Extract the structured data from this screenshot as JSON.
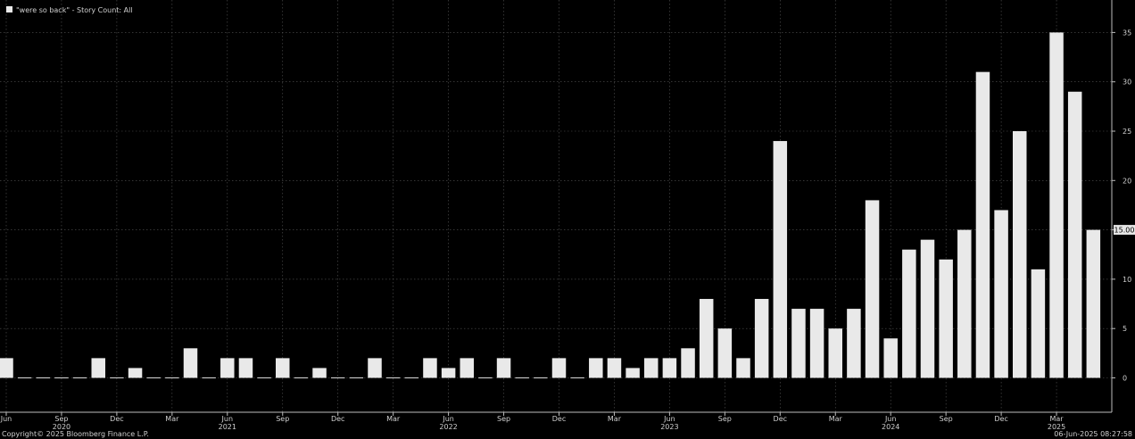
{
  "legend": {
    "label": "\"were so back\" - Story Count: All",
    "swatch_color": "#e9e9e9"
  },
  "footer": {
    "copyright": "Copyright© 2025 Bloomberg Finance L.P.",
    "timestamp": "06-Jun-2025 08:27:58"
  },
  "chart_data": {
    "type": "bar",
    "series": [
      {
        "name": "\"were so back\" - Story Count: All",
        "x": [
          "2020-06",
          "2020-07",
          "2020-08",
          "2020-09",
          "2020-10",
          "2020-11",
          "2020-12",
          "2021-01",
          "2021-02",
          "2021-03",
          "2021-04",
          "2021-05",
          "2021-06",
          "2021-07",
          "2021-08",
          "2021-09",
          "2021-10",
          "2021-11",
          "2021-12",
          "2022-01",
          "2022-02",
          "2022-03",
          "2022-04",
          "2022-05",
          "2022-06",
          "2022-07",
          "2022-08",
          "2022-09",
          "2022-10",
          "2022-11",
          "2022-12",
          "2023-01",
          "2023-02",
          "2023-03",
          "2023-04",
          "2023-05",
          "2023-06",
          "2023-07",
          "2023-08",
          "2023-09",
          "2023-10",
          "2023-11",
          "2023-12",
          "2024-01",
          "2024-02",
          "2024-03",
          "2024-04",
          "2024-05",
          "2024-06",
          "2024-07",
          "2024-08",
          "2024-09",
          "2024-10",
          "2024-11",
          "2024-12",
          "2025-01",
          "2025-02",
          "2025-03",
          "2025-04",
          "2025-05"
        ],
        "values": [
          2,
          0,
          0,
          0,
          0,
          2,
          0,
          1,
          0,
          0,
          3,
          0,
          2,
          2,
          0,
          2,
          0,
          1,
          0,
          0,
          2,
          0,
          0,
          2,
          1,
          2,
          0,
          2,
          0,
          0,
          2,
          0,
          2,
          2,
          1,
          2,
          2,
          3,
          8,
          5,
          2,
          8,
          24,
          7,
          7,
          5,
          7,
          18,
          4,
          13,
          14,
          12,
          15,
          31,
          17,
          25,
          11,
          35,
          29,
          15
        ]
      }
    ],
    "last_value_label": "15.00",
    "ylim": [
      0,
      37
    ],
    "yticks": [
      0,
      5,
      10,
      15,
      20,
      25,
      30,
      35
    ],
    "month_ticks": [
      "Jun",
      "Sep",
      "Dec",
      "Mar",
      "Jun",
      "Sep",
      "Dec",
      "Mar",
      "Jun",
      "Sep",
      "Dec",
      "Mar",
      "Jun",
      "Sep",
      "Dec",
      "Mar",
      "Jun",
      "Sep",
      "Dec",
      "Mar"
    ],
    "year_labels": [
      "2020",
      "2021",
      "2022",
      "2023",
      "2024",
      "2025"
    ],
    "grid": true,
    "legend_position": "top-left",
    "bar_color": "#e9e9e9",
    "background": "#000000"
  }
}
